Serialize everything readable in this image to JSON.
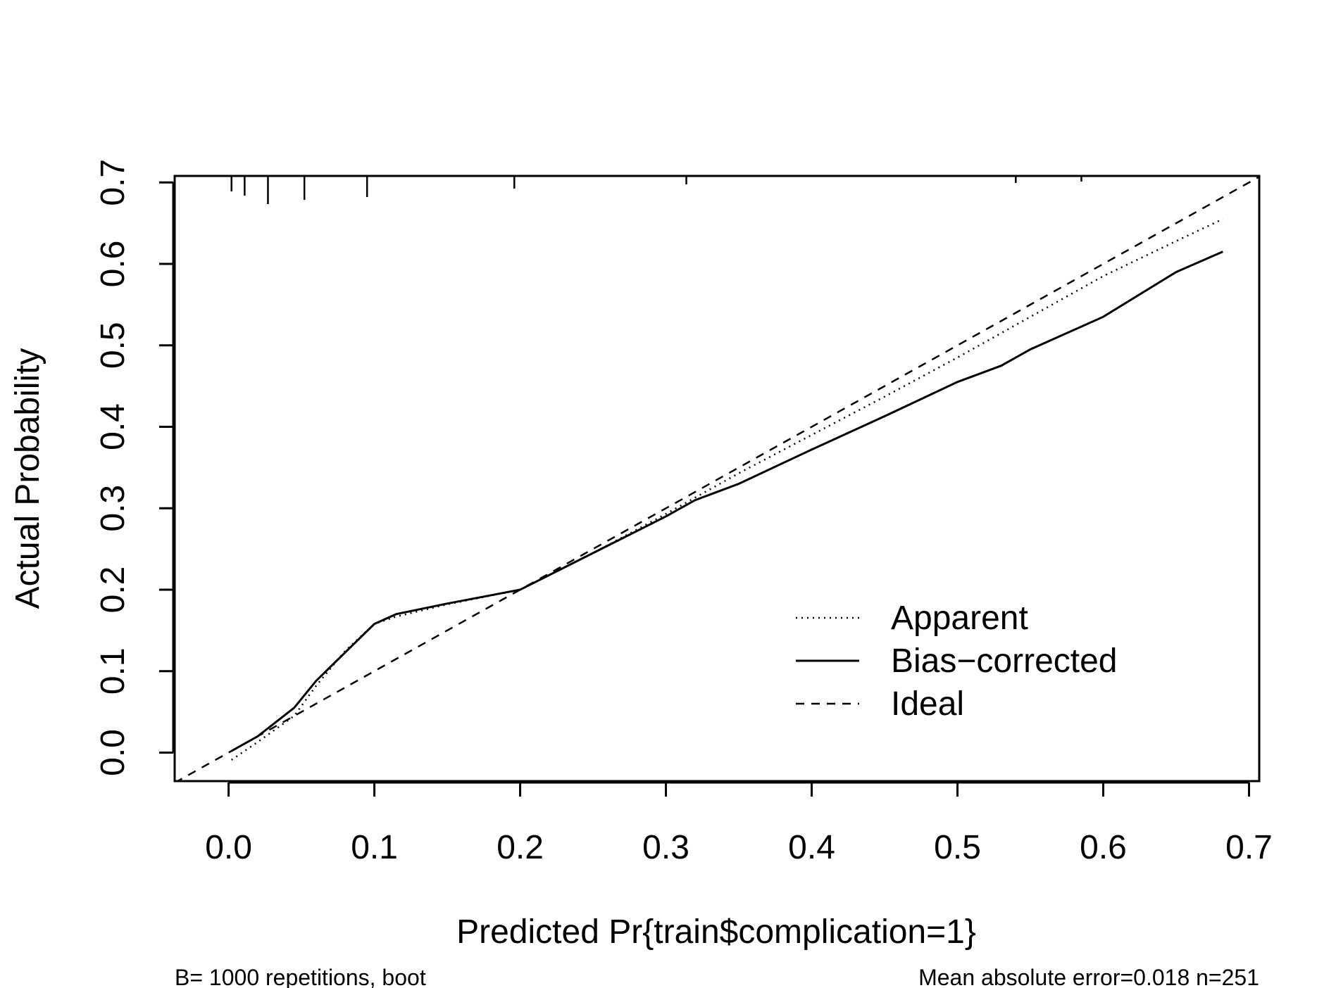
{
  "chart_data": {
    "type": "line",
    "xlabel": "Predicted Pr{train$complication=1}",
    "ylabel": "Actual Probability",
    "xlim": [
      -0.037,
      0.707
    ],
    "ylim": [
      -0.035,
      0.708
    ],
    "x_ticks": [
      "0.0",
      "0.1",
      "0.2",
      "0.3",
      "0.4",
      "0.5",
      "0.6",
      "0.7"
    ],
    "y_ticks": [
      "0.0",
      "0.1",
      "0.2",
      "0.3",
      "0.4",
      "0.5",
      "0.6",
      "0.7"
    ],
    "grid": false,
    "legend_position": "bottom-right",
    "series": [
      {
        "name": "Apparent",
        "style": "dotted",
        "x": [
          0.002,
          0.02,
          0.045,
          0.06,
          0.08,
          0.1,
          0.115,
          0.15,
          0.2,
          0.25,
          0.3,
          0.35,
          0.4,
          0.45,
          0.5,
          0.55,
          0.6,
          0.65,
          0.682
        ],
        "y": [
          -0.009,
          0.013,
          0.045,
          0.082,
          0.125,
          0.158,
          0.167,
          0.182,
          0.2,
          0.245,
          0.293,
          0.343,
          0.39,
          0.437,
          0.485,
          0.535,
          0.585,
          0.628,
          0.655
        ]
      },
      {
        "name": "Bias-corrected",
        "style": "solid",
        "x": [
          0.002,
          0.02,
          0.045,
          0.06,
          0.08,
          0.1,
          0.115,
          0.15,
          0.2,
          0.25,
          0.3,
          0.32,
          0.35,
          0.4,
          0.45,
          0.5,
          0.53,
          0.55,
          0.6,
          0.65,
          0.682
        ],
        "y": [
          0.002,
          0.02,
          0.055,
          0.088,
          0.123,
          0.158,
          0.17,
          0.183,
          0.2,
          0.245,
          0.29,
          0.31,
          0.33,
          0.372,
          0.413,
          0.455,
          0.475,
          0.495,
          0.535,
          0.59,
          0.615
        ]
      },
      {
        "name": "Ideal",
        "style": "dashed",
        "x": [
          -0.037,
          0.707
        ],
        "y": [
          -0.037,
          0.707
        ]
      }
    ],
    "rug_x": [
      0.002,
      0.011,
      0.027,
      0.052,
      0.095,
      0.196,
      0.314,
      0.54,
      0.585
    ],
    "footer_left": "B= 1000 repetitions, boot",
    "footer_right": "Mean absolute error=0.018 n=251"
  }
}
